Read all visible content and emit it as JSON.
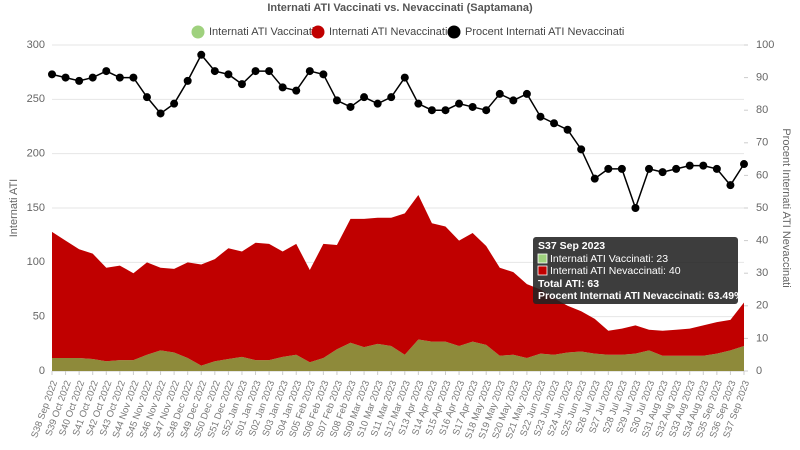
{
  "chart_data": {
    "type": "stacked_area_line",
    "title": "Internati ATI Vaccinati vs. Nevaccinati (Saptamana)",
    "y_label": "Internati ATI",
    "y2_label": "Procent Internati ATI Nevaccinati",
    "categories": [
      "S38 Sep 2022",
      "S39 Oct 2022",
      "S40 Oct 2022",
      "S41 Oct 2022",
      "S42 Oct 2022",
      "S43 Oct 2022",
      "S44 Nov 2022",
      "S45 Nov 2022",
      "S46 Nov 2022",
      "S47 Nov 2022",
      "S48 Dec 2022",
      "S49 Dec 2022",
      "S50 Dec 2022",
      "S51 Dec 2022",
      "S52 Jan 2023",
      "S01 Jan 2023",
      "S02 Jan 2023",
      "S03 Jan 2023",
      "S04 Jan 2023",
      "S05 Feb 2023",
      "S06 Feb 2023",
      "S07 Feb 2023",
      "S08 Feb 2023",
      "S09 Mar 2023",
      "S10 Mar 2023",
      "S11 Mar 2023",
      "S12 Mar 2023",
      "S13 Apr 2023",
      "S14 Apr 2023",
      "S15 Apr 2023",
      "S16 Apr 2023",
      "S17 Apr 2023",
      "S18 May 2023",
      "S19 May 2023",
      "S20 May 2023",
      "S21 May 2023",
      "S22 Jun 2023",
      "S23 Jun 2023",
      "S24 Jun 2023",
      "S25 Jun 2023",
      "S26 Jul 2023",
      "S27 Jul 2023",
      "S28 Jul 2023",
      "S29 Jul 2023",
      "S30 Jul 2023",
      "S31 Aug 2023",
      "S32 Aug 2023",
      "S33 Aug 2023",
      "S34 Aug 2023",
      "S35 Sep 2023",
      "S36 Sep 2023",
      "S37 Sep 2023"
    ],
    "series": [
      {
        "name": "Internati ATI Vaccinati",
        "color": "#8e8a3a",
        "marker_color": "#9fd17e",
        "values": [
          12,
          12,
          12,
          11,
          9,
          10,
          10,
          15,
          19,
          17,
          12,
          5,
          9,
          11,
          13,
          10,
          10,
          13,
          15,
          8,
          12,
          20,
          26,
          22,
          25,
          23,
          15,
          29,
          27,
          27,
          23,
          27,
          24,
          14,
          15,
          12,
          16,
          15,
          17,
          18,
          16,
          15,
          15,
          16,
          19,
          14,
          14,
          14,
          14,
          16,
          19,
          23
        ]
      },
      {
        "name": "Internati ATI Nevaccinati",
        "color": "#c00000",
        "values": [
          116,
          108,
          100,
          97,
          86,
          87,
          80,
          85,
          76,
          77,
          88,
          93,
          94,
          102,
          97,
          108,
          107,
          97,
          102,
          85,
          105,
          96,
          114,
          118,
          116,
          118,
          130,
          133,
          109,
          106,
          97,
          100,
          91,
          81,
          76,
          68,
          59,
          52,
          43,
          37,
          32,
          22,
          24,
          26,
          19,
          23,
          24,
          25,
          28,
          29,
          28,
          40
        ]
      },
      {
        "name": "Procent Internati ATI Nevaccinati",
        "color": "#000000",
        "axis": "y2",
        "values": [
          91,
          90,
          89,
          90,
          92,
          90,
          90,
          84,
          79,
          82,
          89,
          97,
          92,
          91,
          88,
          92,
          92,
          87,
          86,
          92,
          91,
          83,
          81,
          84,
          82,
          84,
          90,
          82,
          80,
          80,
          82,
          81,
          80,
          85,
          83,
          85,
          78,
          76,
          74,
          68,
          59,
          62,
          62,
          50,
          62,
          61,
          62,
          63,
          63,
          62,
          57,
          63.49
        ]
      }
    ],
    "ylim": [
      0,
      300
    ],
    "yticks": [
      0,
      50,
      100,
      150,
      200,
      250,
      300
    ],
    "y2lim": [
      0,
      100
    ],
    "y2ticks": [
      0,
      10,
      20,
      30,
      40,
      50,
      60,
      70,
      80,
      90,
      100
    ],
    "grid": true,
    "legend": "top",
    "tooltip": {
      "title": "S37 Sep 2023",
      "lines": [
        "Internati ATI Vaccinati: 23",
        "Internati ATI Nevaccinati: 40"
      ],
      "footer": [
        "Total ATI: 63",
        "Procent Internati ATI Nevaccinati: 63.49%"
      ]
    }
  }
}
